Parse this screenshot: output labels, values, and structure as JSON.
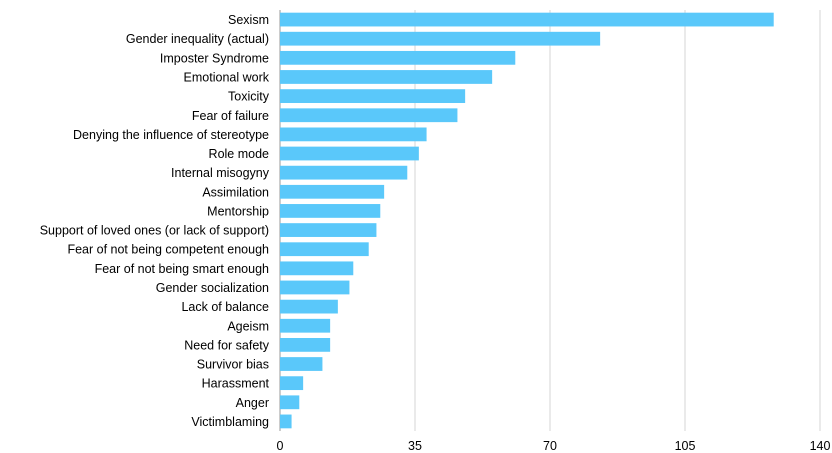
{
  "chart_data": {
    "type": "bar",
    "orientation": "horizontal",
    "categories": [
      "Sexism",
      "Gender inequality (actual)",
      "Imposter Syndrome",
      "Emotional work",
      "Toxicity",
      "Fear of failure",
      "Denying the influence of stereotype",
      "Role mode",
      "Internal misogyny",
      "Assimilation",
      "Mentorship",
      "Support of loved ones (or lack of support)",
      "Fear of not being competent enough",
      "Fear of not being smart enough",
      "Gender socialization",
      "Lack of balance",
      "Ageism",
      "Need for safety",
      "Survivor bias",
      "Harassment",
      "Anger",
      "Victimblaming"
    ],
    "values": [
      128,
      83,
      61,
      55,
      48,
      46,
      38,
      36,
      33,
      27,
      26,
      25,
      23,
      19,
      18,
      15,
      13,
      13,
      11,
      6,
      5,
      3
    ],
    "xlim": [
      0,
      140
    ],
    "xticks": [
      "0",
      "35",
      "70",
      "105",
      "140"
    ],
    "title": "",
    "xlabel": "",
    "ylabel": "",
    "grid": "vertical",
    "bar_color": "#5ac8fa"
  }
}
